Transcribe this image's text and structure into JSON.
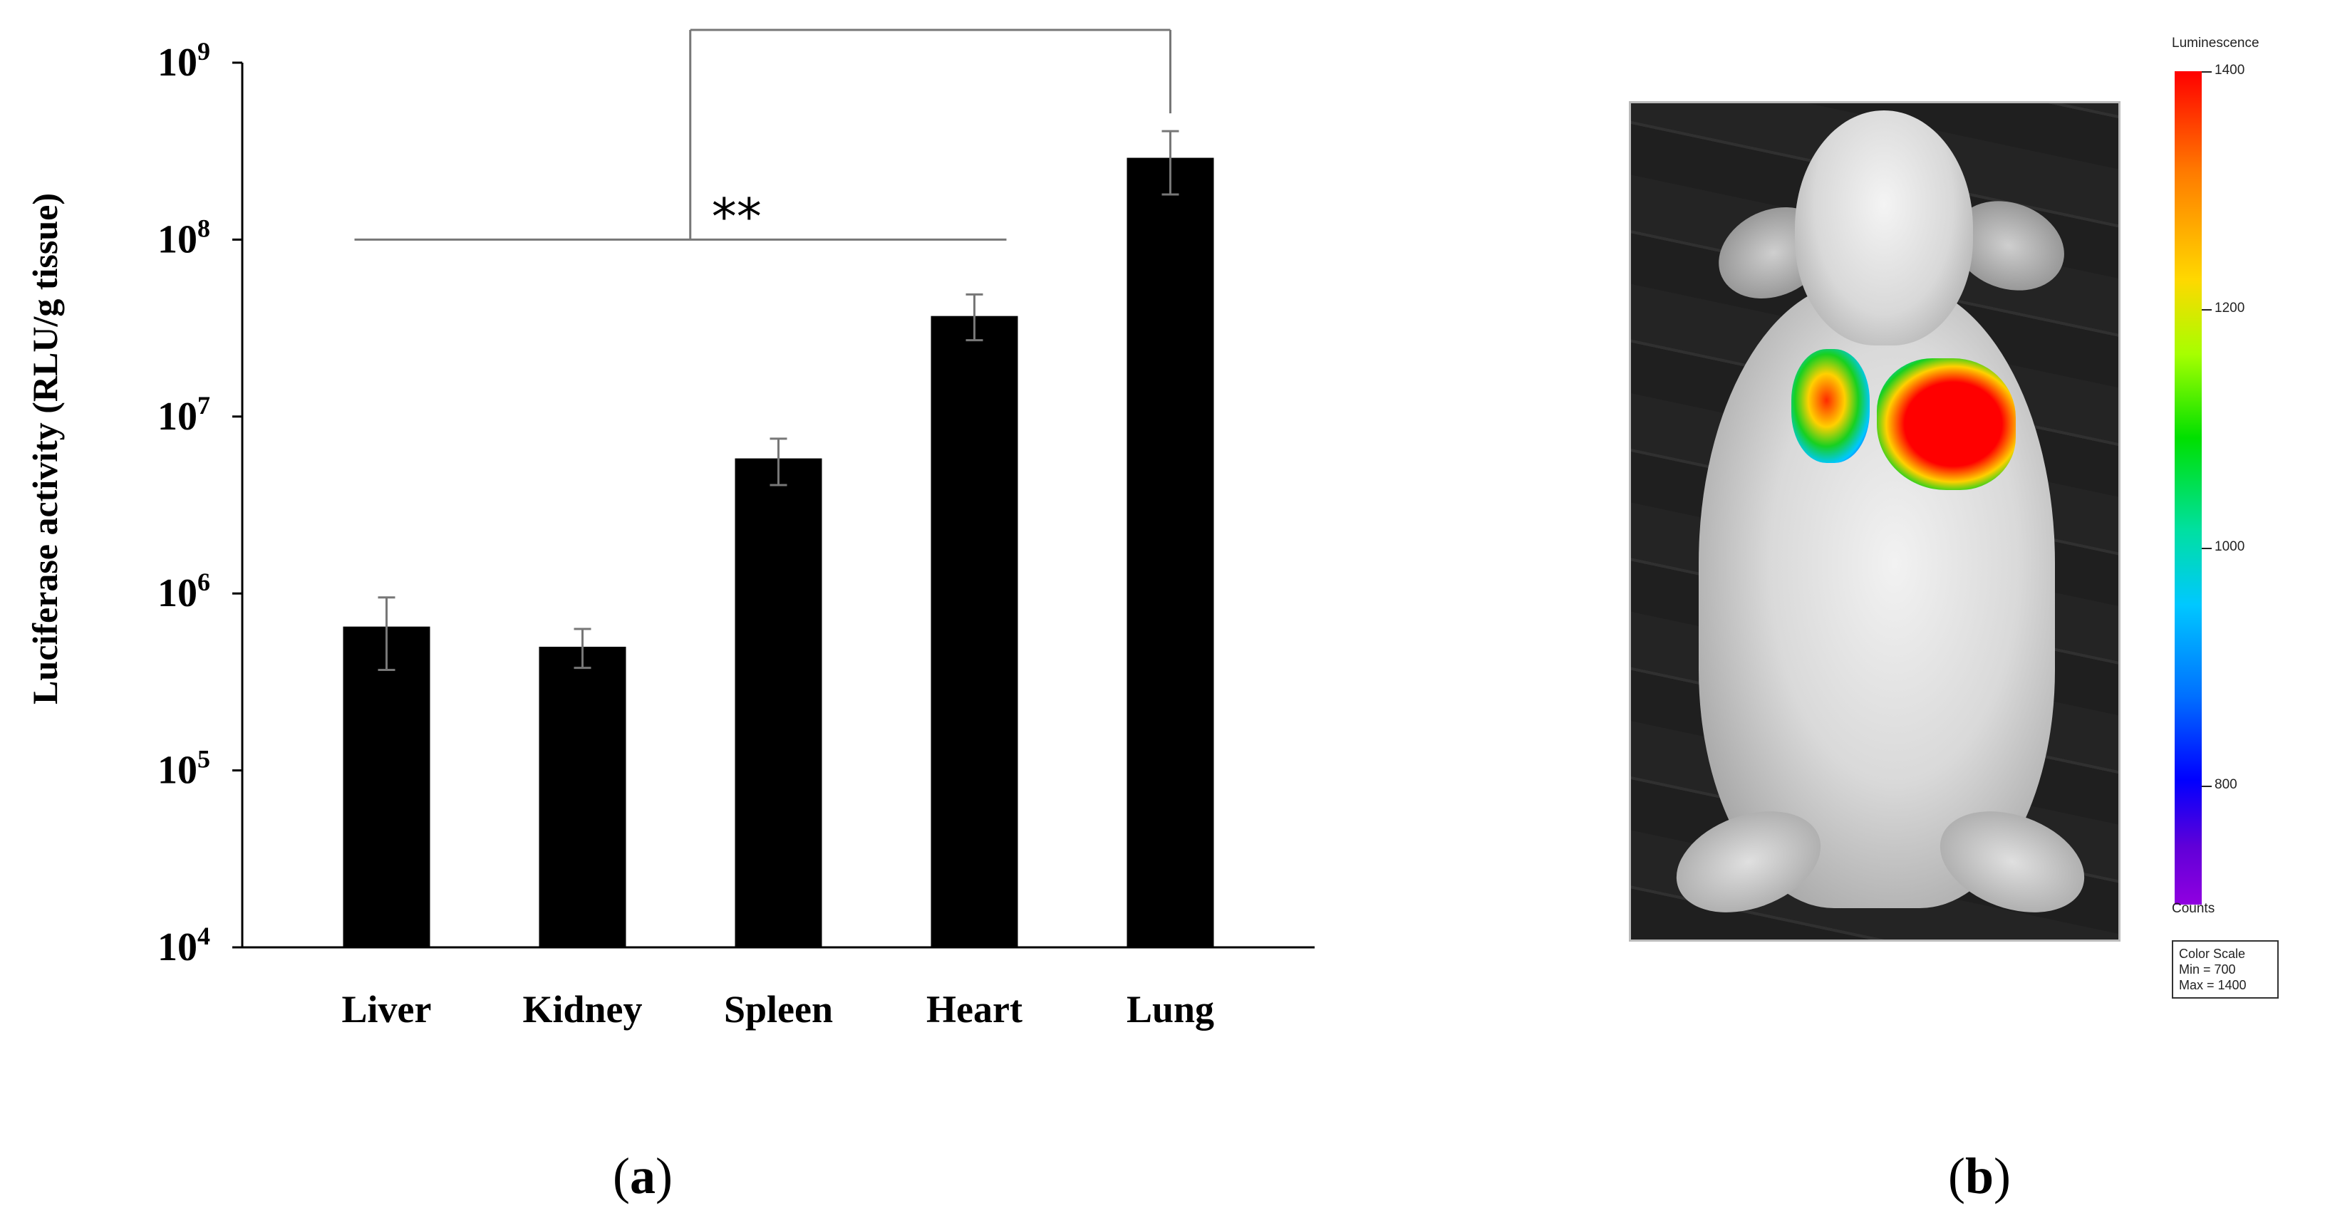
{
  "chart_data": {
    "type": "bar",
    "ylabel": "Luciferase activity (RLU/g tissue)",
    "yscale": "log",
    "ylim": [
      10000,
      1000000000
    ],
    "yticks": [
      {
        "value": 10000,
        "base": "10",
        "exp": "4"
      },
      {
        "value": 100000,
        "base": "10",
        "exp": "5"
      },
      {
        "value": 1000000,
        "base": "10",
        "exp": "6"
      },
      {
        "value": 10000000,
        "base": "10",
        "exp": "7"
      },
      {
        "value": 100000000,
        "base": "10",
        "exp": "8"
      },
      {
        "value": 1000000000,
        "base": "10",
        "exp": "9"
      }
    ],
    "categories": [
      "Liver",
      "Kidney",
      "Spleen",
      "Heart",
      "Lung"
    ],
    "values": [
      650000,
      500000,
      5800000,
      37000000,
      290000000
    ],
    "error_low": [
      370000,
      380000,
      4100000,
      27000000,
      180000000
    ],
    "error_high": [
      950000,
      630000,
      7500000,
      49000000,
      410000000
    ],
    "bar_color": "#000000",
    "annotation": "**"
  },
  "panel_a_label": "a",
  "panel_b_label": "b",
  "color_scale": {
    "title": "Luminescence",
    "ticks": [
      {
        "label": "1400",
        "value": 1400
      },
      {
        "label": "1200",
        "value": 1200
      },
      {
        "label": "1000",
        "value": 1000
      },
      {
        "label": "800",
        "value": 800
      }
    ],
    "min": 700,
    "max": 1400,
    "units": "Counts",
    "box_title": "Color Scale",
    "box_min": "Min = 700",
    "box_max": "Max = 1400"
  }
}
